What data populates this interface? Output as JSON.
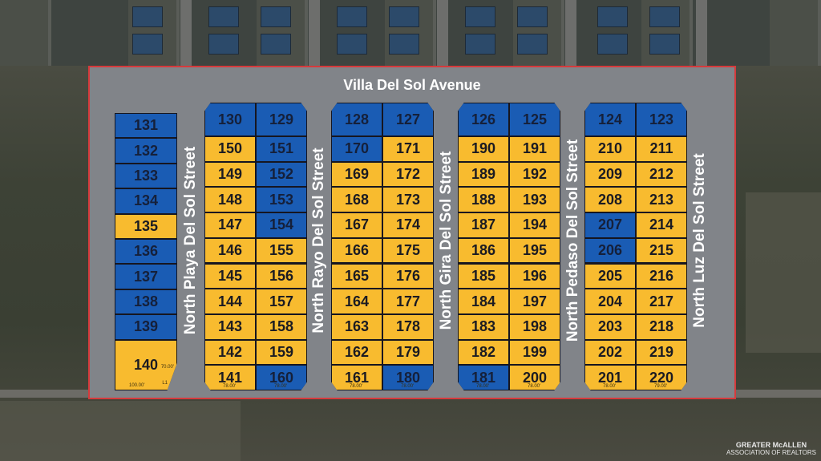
{
  "map": {
    "title": "Villa Del Sol Avenue",
    "colors": {
      "blue": "#1a5cb4",
      "yellow": "#f8bb2f",
      "border": "#d63a3c",
      "pavement": "#818489"
    },
    "streets": [
      "North Playa Del Sol Street",
      "North Rayo Del Sol Street",
      "North Gira Del Sol Street",
      "North Pedaso Del Sol Street",
      "North Luz Del Sol Street"
    ],
    "single_column": {
      "lots": [
        {
          "n": "131",
          "c": "blue"
        },
        {
          "n": "132",
          "c": "blue"
        },
        {
          "n": "133",
          "c": "blue"
        },
        {
          "n": "134",
          "c": "blue"
        },
        {
          "n": "135",
          "c": "yellow"
        },
        {
          "n": "136",
          "c": "blue"
        },
        {
          "n": "137",
          "c": "blue"
        },
        {
          "n": "138",
          "c": "blue"
        },
        {
          "n": "139",
          "c": "blue"
        },
        {
          "n": "140",
          "c": "yellow"
        }
      ],
      "corner_dims": [
        "100.00'",
        "70.00'",
        "L1"
      ]
    },
    "blocks": [
      {
        "top": [
          {
            "n": "130",
            "c": "blue"
          },
          {
            "n": "129",
            "c": "blue"
          }
        ],
        "left": [
          {
            "n": "150",
            "c": "yellow"
          },
          {
            "n": "149",
            "c": "yellow"
          },
          {
            "n": "148",
            "c": "yellow"
          },
          {
            "n": "147",
            "c": "yellow"
          },
          {
            "n": "146",
            "c": "yellow"
          },
          {
            "n": "145",
            "c": "yellow"
          },
          {
            "n": "144",
            "c": "yellow"
          },
          {
            "n": "143",
            "c": "yellow"
          },
          {
            "n": "142",
            "c": "yellow"
          },
          {
            "n": "141",
            "c": "yellow"
          }
        ],
        "right": [
          {
            "n": "151",
            "c": "blue"
          },
          {
            "n": "152",
            "c": "blue"
          },
          {
            "n": "153",
            "c": "blue"
          },
          {
            "n": "154",
            "c": "blue"
          },
          {
            "n": "155",
            "c": "yellow"
          },
          {
            "n": "156",
            "c": "yellow"
          },
          {
            "n": "157",
            "c": "yellow"
          },
          {
            "n": "158",
            "c": "yellow"
          },
          {
            "n": "159",
            "c": "yellow"
          },
          {
            "n": "160",
            "c": "blue"
          }
        ],
        "bottom_dims": [
          "78.00'",
          "78.00'"
        ]
      },
      {
        "top": [
          {
            "n": "128",
            "c": "blue"
          },
          {
            "n": "127",
            "c": "blue"
          }
        ],
        "left": [
          {
            "n": "170",
            "c": "blue"
          },
          {
            "n": "169",
            "c": "yellow"
          },
          {
            "n": "168",
            "c": "yellow"
          },
          {
            "n": "167",
            "c": "yellow"
          },
          {
            "n": "166",
            "c": "yellow"
          },
          {
            "n": "165",
            "c": "yellow"
          },
          {
            "n": "164",
            "c": "yellow"
          },
          {
            "n": "163",
            "c": "yellow"
          },
          {
            "n": "162",
            "c": "yellow"
          },
          {
            "n": "161",
            "c": "yellow"
          }
        ],
        "right": [
          {
            "n": "171",
            "c": "yellow"
          },
          {
            "n": "172",
            "c": "yellow"
          },
          {
            "n": "173",
            "c": "yellow"
          },
          {
            "n": "174",
            "c": "yellow"
          },
          {
            "n": "175",
            "c": "yellow"
          },
          {
            "n": "176",
            "c": "yellow"
          },
          {
            "n": "177",
            "c": "yellow"
          },
          {
            "n": "178",
            "c": "yellow"
          },
          {
            "n": "179",
            "c": "yellow"
          },
          {
            "n": "180",
            "c": "blue"
          }
        ],
        "bottom_dims": [
          "78.00'",
          "78.00'"
        ]
      },
      {
        "top": [
          {
            "n": "126",
            "c": "blue"
          },
          {
            "n": "125",
            "c": "blue"
          }
        ],
        "left": [
          {
            "n": "190",
            "c": "yellow"
          },
          {
            "n": "189",
            "c": "yellow"
          },
          {
            "n": "188",
            "c": "yellow"
          },
          {
            "n": "187",
            "c": "yellow"
          },
          {
            "n": "186",
            "c": "yellow"
          },
          {
            "n": "185",
            "c": "yellow"
          },
          {
            "n": "184",
            "c": "yellow"
          },
          {
            "n": "183",
            "c": "yellow"
          },
          {
            "n": "182",
            "c": "yellow"
          },
          {
            "n": "181",
            "c": "blue"
          }
        ],
        "right": [
          {
            "n": "191",
            "c": "yellow"
          },
          {
            "n": "192",
            "c": "yellow"
          },
          {
            "n": "193",
            "c": "yellow"
          },
          {
            "n": "194",
            "c": "yellow"
          },
          {
            "n": "195",
            "c": "yellow"
          },
          {
            "n": "196",
            "c": "yellow"
          },
          {
            "n": "197",
            "c": "yellow"
          },
          {
            "n": "198",
            "c": "yellow"
          },
          {
            "n": "199",
            "c": "yellow"
          },
          {
            "n": "200",
            "c": "yellow"
          }
        ],
        "bottom_dims": [
          "78.00'",
          "78.00'"
        ]
      },
      {
        "top": [
          {
            "n": "124",
            "c": "blue"
          },
          {
            "n": "123",
            "c": "blue"
          }
        ],
        "left": [
          {
            "n": "210",
            "c": "yellow"
          },
          {
            "n": "209",
            "c": "yellow"
          },
          {
            "n": "208",
            "c": "yellow"
          },
          {
            "n": "207",
            "c": "blue"
          },
          {
            "n": "206",
            "c": "blue"
          },
          {
            "n": "205",
            "c": "yellow"
          },
          {
            "n": "204",
            "c": "yellow"
          },
          {
            "n": "203",
            "c": "yellow"
          },
          {
            "n": "202",
            "c": "yellow"
          },
          {
            "n": "201",
            "c": "yellow"
          }
        ],
        "right": [
          {
            "n": "211",
            "c": "yellow"
          },
          {
            "n": "212",
            "c": "yellow"
          },
          {
            "n": "213",
            "c": "yellow"
          },
          {
            "n": "214",
            "c": "yellow"
          },
          {
            "n": "215",
            "c": "yellow"
          },
          {
            "n": "216",
            "c": "yellow"
          },
          {
            "n": "217",
            "c": "yellow"
          },
          {
            "n": "218",
            "c": "yellow"
          },
          {
            "n": "219",
            "c": "yellow"
          },
          {
            "n": "220",
            "c": "yellow"
          }
        ],
        "bottom_dims": [
          "78.00'",
          "79.00'"
        ]
      }
    ]
  },
  "watermark": {
    "line1": "GREATER McALLEN",
    "line2": "ASSOCIATION OF REALTORS"
  }
}
